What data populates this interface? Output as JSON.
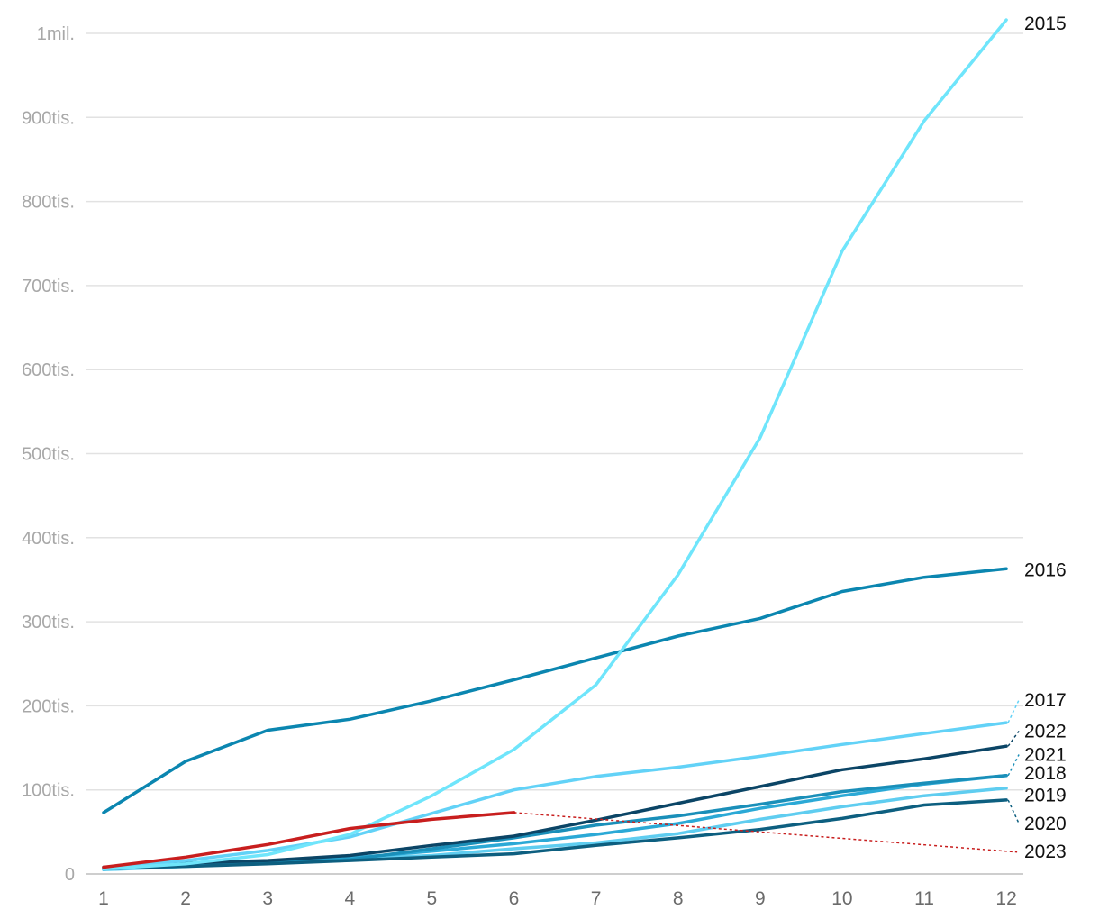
{
  "chart_data": {
    "type": "line",
    "x": [
      1,
      2,
      3,
      4,
      5,
      6,
      7,
      8,
      9,
      10,
      11,
      12
    ],
    "ylim": [
      0,
      1000000
    ],
    "yticks": [
      {
        "value": 0,
        "label": "0"
      },
      {
        "value": 100000,
        "label": "100tis."
      },
      {
        "value": 200000,
        "label": "200tis."
      },
      {
        "value": 300000,
        "label": "300tis."
      },
      {
        "value": 400000,
        "label": "400tis."
      },
      {
        "value": 500000,
        "label": "500tis."
      },
      {
        "value": 600000,
        "label": "600tis."
      },
      {
        "value": 700000,
        "label": "700tis."
      },
      {
        "value": 800000,
        "label": "800tis."
      },
      {
        "value": 900000,
        "label": "900tis."
      },
      {
        "value": 1000000,
        "label": "1mil."
      }
    ],
    "xticks": [
      "1",
      "2",
      "3",
      "4",
      "5",
      "6",
      "7",
      "8",
      "9",
      "10",
      "11",
      "12"
    ],
    "grid": true,
    "legend": "direct labels at line ends (right)",
    "series": [
      {
        "name": "2019",
        "color": "#5fcdf0",
        "label_value": 94000,
        "values": [
          5000,
          9000,
          14000,
          18000,
          22000,
          30000,
          37000,
          48000,
          65000,
          80000,
          93000,
          102000
        ]
      },
      {
        "name": "2018",
        "color": "#2ba9d6",
        "label_value": 120000,
        "values": [
          6000,
          11000,
          14000,
          19000,
          27000,
          36000,
          47000,
          60000,
          78000,
          93000,
          107000,
          117000
        ]
      },
      {
        "name": "2021",
        "color": "#1a8fb9",
        "label_value": 142000,
        "values": [
          6000,
          10000,
          13000,
          17000,
          30000,
          43000,
          58000,
          69000,
          83000,
          98000,
          108000,
          117000
        ]
      },
      {
        "name": "2020",
        "color": "#0d5f80",
        "label_value": 60000,
        "values": [
          7000,
          9000,
          12000,
          16000,
          20000,
          24000,
          34000,
          43000,
          53000,
          66000,
          82000,
          88000
        ]
      },
      {
        "name": "2022",
        "color": "#0b4566",
        "label_value": 170000,
        "values": [
          8000,
          13000,
          16000,
          22000,
          34000,
          45000,
          64000,
          84000,
          104000,
          124000,
          137000,
          152000
        ]
      },
      {
        "name": "2017",
        "color": "#62d2f7",
        "label_value": 207000,
        "values": [
          8000,
          16000,
          28000,
          44000,
          72000,
          100000,
          116000,
          127000,
          140000,
          154000,
          167000,
          180000
        ]
      },
      {
        "name": "2016",
        "color": "#0b86b0",
        "label_value": 362000,
        "values": [
          73000,
          134000,
          171000,
          184000,
          206000,
          231000,
          257000,
          283000,
          304000,
          336000,
          353000,
          363000
        ]
      },
      {
        "name": "2015",
        "color": "#6fe5fb",
        "label_value": 1012000,
        "values": [
          6000,
          12000,
          23000,
          47000,
          93000,
          148000,
          225000,
          356000,
          519000,
          741000,
          896000,
          1016000
        ]
      },
      {
        "name": "2023",
        "color": "#c81e1e",
        "label_value": 27000,
        "values": [
          8000,
          20000,
          35000,
          54000,
          65000,
          73000,
          null,
          null,
          null,
          null,
          null,
          null
        ],
        "trend_to": [
          12,
          26000
        ]
      }
    ]
  }
}
